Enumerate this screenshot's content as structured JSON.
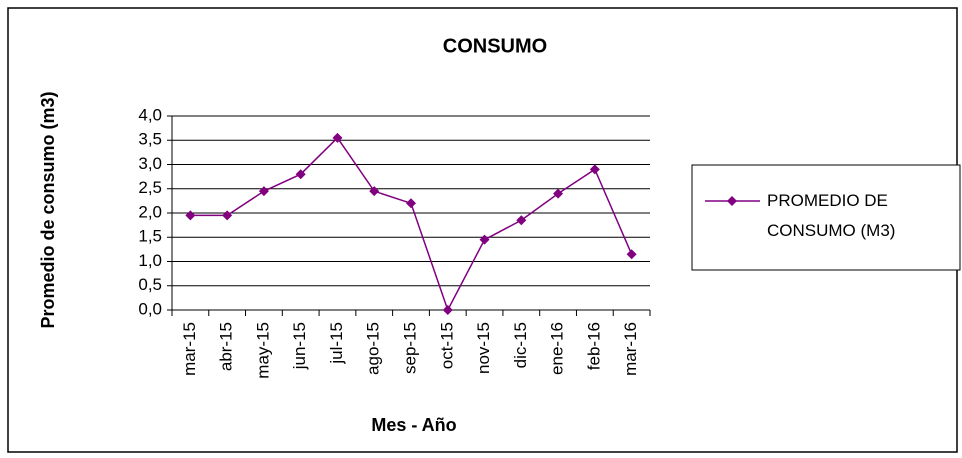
{
  "chart_data": {
    "type": "line",
    "title": "CONSUMO",
    "x_label": "Mes - Año",
    "y_label": "Promedio de consumo (m3)",
    "categories": [
      "mar-15",
      "abr-15",
      "may-15",
      "jun-15",
      "jul-15",
      "ago-15",
      "sep-15",
      "oct-15",
      "nov-15",
      "dic-15",
      "ene-16",
      "feb-16",
      "mar-16"
    ],
    "series": [
      {
        "name": "PROMEDIO DE CONSUMO (M3)",
        "color": "#800080",
        "values": [
          1.95,
          1.95,
          2.45,
          2.8,
          3.55,
          2.45,
          2.2,
          0,
          1.45,
          1.85,
          2.4,
          2.9,
          1.15
        ]
      }
    ],
    "ylim": [
      0,
      4
    ],
    "yticks": [
      {
        "value": 0,
        "label": "0,0"
      },
      {
        "value": 0.5,
        "label": "0,5"
      },
      {
        "value": 1,
        "label": "1,0"
      },
      {
        "value": 1.5,
        "label": "1,5"
      },
      {
        "value": 2,
        "label": "2,0"
      },
      {
        "value": 2.5,
        "label": "2,5"
      },
      {
        "value": 3,
        "label": "3,0"
      },
      {
        "value": 3.5,
        "label": "3,5"
      },
      {
        "value": 4,
        "label": "4,0"
      }
    ],
    "grid": true,
    "legend": "right"
  }
}
